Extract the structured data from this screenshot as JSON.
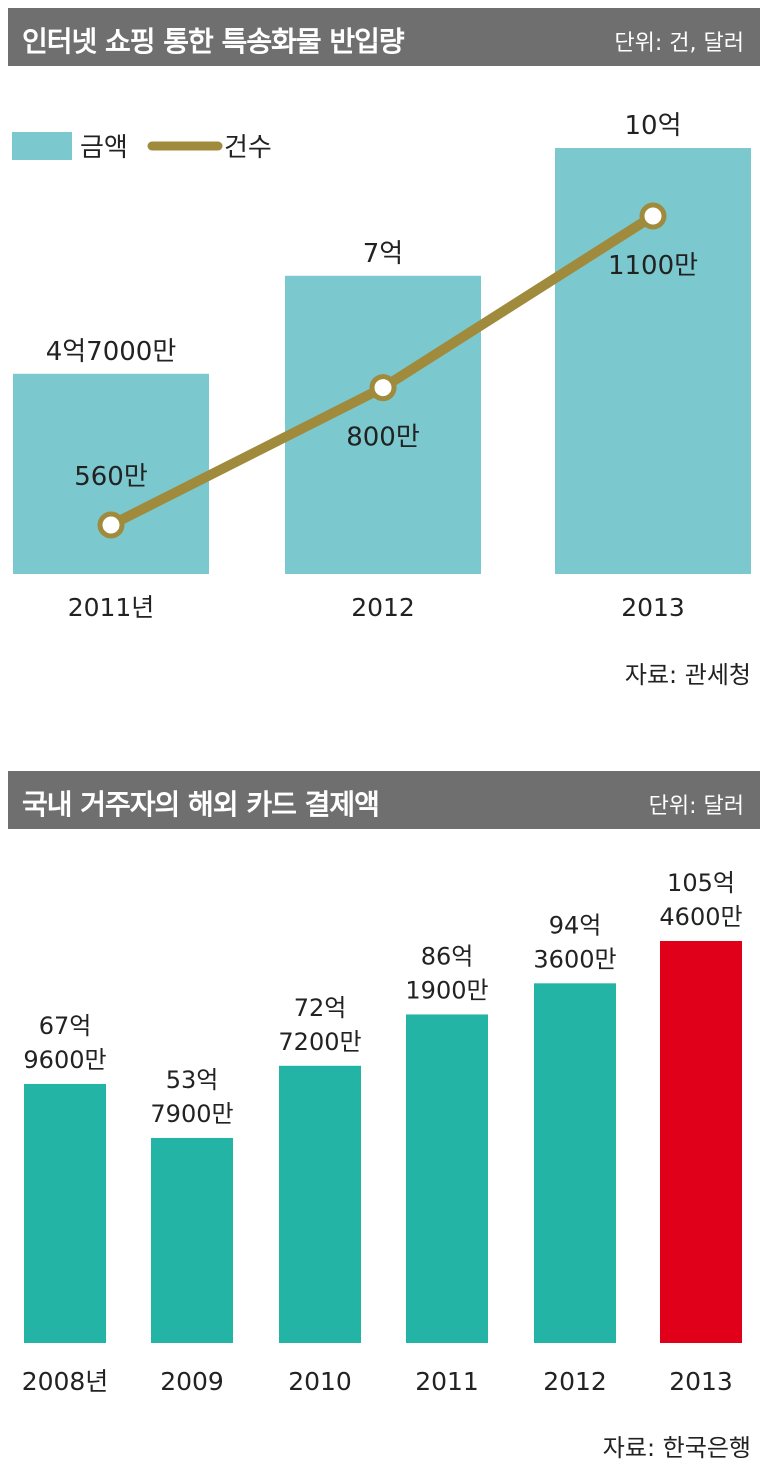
{
  "chart1": {
    "title": "인터넷 쇼핑 통한 특송화물 반입량",
    "unit": "단위: 건, 달러",
    "source": "자료: 관세청",
    "legend": {
      "bar": "금액",
      "line": "건수"
    },
    "colors": {
      "bar": "#7cc8cf",
      "line": "#a08a3c"
    }
  },
  "chart2": {
    "title": "국내 거주자의 해외 카드 결제액",
    "unit": "단위: 달러",
    "source": "자료: 한국은행",
    "colors": {
      "bar": "#23b4a5",
      "highlight": "#e0001a"
    }
  },
  "chart_data": [
    {
      "type": "bar",
      "title": "인터넷 쇼핑 통한 특송화물 반입량",
      "categories": [
        "2011년",
        "2012",
        "2013"
      ],
      "series": [
        {
          "name": "금액",
          "type": "bar",
          "values": [
            470000000,
            700000000,
            1000000000
          ],
          "labels": [
            "4억7000만",
            "7억",
            "10억"
          ]
        },
        {
          "name": "건수",
          "type": "line",
          "values": [
            5600000,
            8000000,
            11000000
          ],
          "labels": [
            "560만",
            "800만",
            "1100만"
          ]
        }
      ],
      "legend": "top-left",
      "grid": false
    },
    {
      "type": "bar",
      "title": "국내 거주자의 해외 카드 결제액",
      "categories": [
        "2008년",
        "2009",
        "2010",
        "2011",
        "2012",
        "2013"
      ],
      "values": [
        6796000000,
        5379000000,
        7272000000,
        8619000000,
        9436000000,
        10546000000
      ],
      "labels": [
        [
          "67억",
          "9600만"
        ],
        [
          "53억",
          "7900만"
        ],
        [
          "72억",
          "7200만"
        ],
        [
          "86억",
          "1900만"
        ],
        [
          "94억",
          "3600만"
        ],
        [
          "105억",
          "4600만"
        ]
      ],
      "highlight_index": 5,
      "grid": false
    }
  ]
}
